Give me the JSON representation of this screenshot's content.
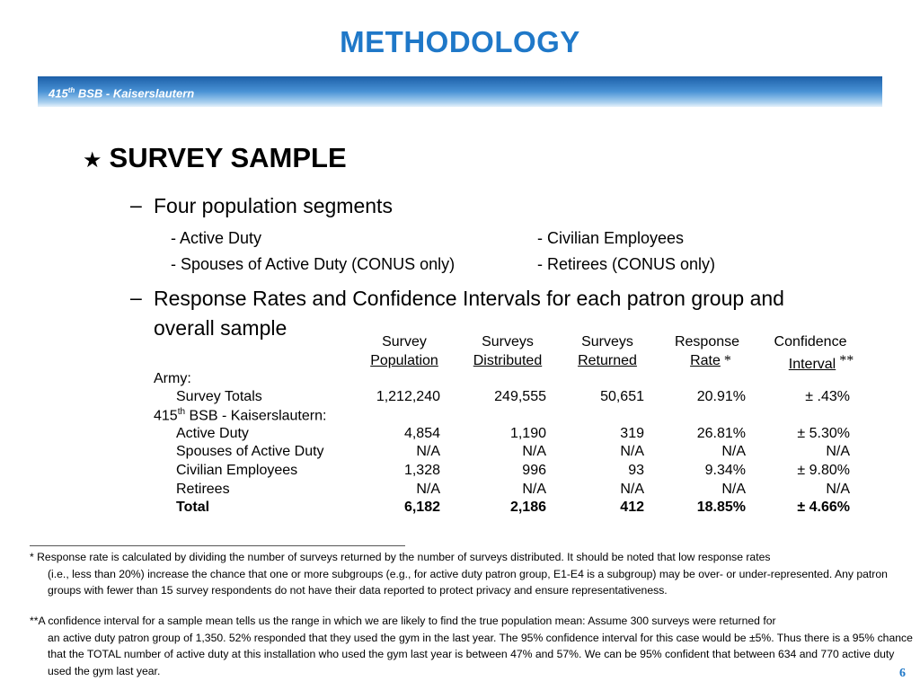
{
  "slide": {
    "title": "METHODOLOGY",
    "banner": {
      "prefix": "415",
      "sup": "th",
      "suffix": " BSB - Kaiserslautern"
    },
    "heading": "SURVEY SAMPLE",
    "heading_icon": "star-icon",
    "bullet1": "Four population segments",
    "segments": {
      "left": [
        "- Active Duty",
        "- Spouses of Active Duty (CONUS only)"
      ],
      "right": [
        "- Civilian Employees",
        "- Retirees (CONUS only)"
      ]
    },
    "bullet2_line1": "Response Rates and Confidence Intervals for each patron group and",
    "bullet2_line2": "overall sample",
    "page_number": "6"
  },
  "table": {
    "headers": [
      {
        "top": "Survey",
        "bottom": "Population"
      },
      {
        "top": "Surveys",
        "bottom": "Distributed"
      },
      {
        "top": "Surveys",
        "bottom": "Returned"
      },
      {
        "top": "Response",
        "bottom": "Rate",
        "mark": "*"
      },
      {
        "top": "Confidence",
        "bottom": "Interval",
        "mark": "**"
      }
    ],
    "army_label": "Army:",
    "army_row": {
      "label": "Survey Totals",
      "values": [
        "1,212,240",
        "249,555",
        "50,651",
        "20.91%",
        "± .43%"
      ]
    },
    "bsb_label": {
      "prefix": "415",
      "sup": "th",
      "suffix": " BSB - Kaiserslautern:"
    },
    "rows": [
      {
        "label": "Active Duty",
        "values": [
          "4,854",
          "1,190",
          "319",
          "26.81%",
          "± 5.30%"
        ]
      },
      {
        "label": "Spouses of Active Duty",
        "values": [
          "N/A",
          "N/A",
          "N/A",
          "N/A",
          "N/A"
        ]
      },
      {
        "label": "Civilian Employees",
        "values": [
          "1,328",
          "996",
          "93",
          "9.34%",
          "± 9.80%"
        ]
      },
      {
        "label": "Retirees",
        "values": [
          "N/A",
          "N/A",
          "N/A",
          "N/A",
          "N/A"
        ]
      }
    ],
    "total_row": {
      "label": "Total",
      "values": [
        "6,182",
        "2,186",
        "412",
        "18.85%",
        "± 4.66%"
      ]
    }
  },
  "footnotes": {
    "note1_first": "*  Response rate is calculated by dividing the number of surveys returned by the number of surveys distributed.  It should be noted that low response rates",
    "note1_rest": "(i.e., less than 20%) increase the chance that one or more subgroups (e.g., for active duty patron group, E1-E4 is a subgroup) may be over- or under-represented.  Any patron groups with fewer than 15 survey respondents do not have their data reported to protect privacy and ensure representativeness.",
    "note2_first": "**A confidence interval for a sample mean tells us the range in which we are likely to find the true population mean:  Assume 300 surveys were returned for",
    "note2_rest": "an active duty patron group of 1,350.  52% responded that they used the gym in the last year.  The 95% confidence interval for this case would be ±5%.  Thus there is a 95% chance that the TOTAL number of active duty at this installation who used the gym last year is between 47% and 57%.  We can be 95% confident that between 634 and 770 active duty used the gym last year."
  }
}
